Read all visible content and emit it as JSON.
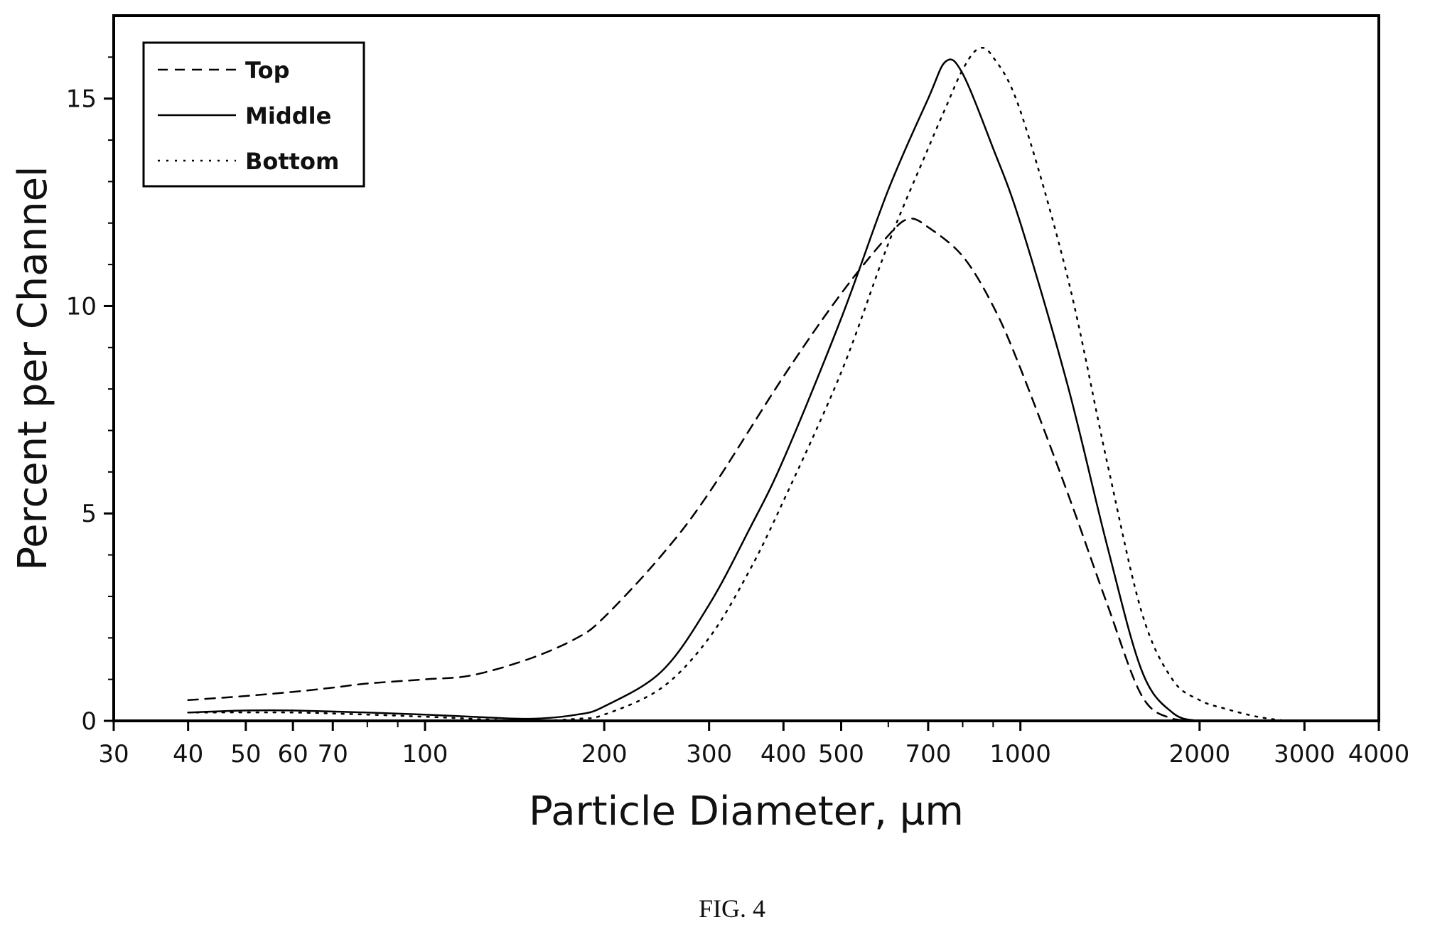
{
  "chart_data": {
    "type": "line",
    "title": "",
    "xlabel": "Particle Diameter, µm",
    "ylabel": "Percent per Channel",
    "xscale": "log",
    "xlim": [
      30,
      4000
    ],
    "ylim": [
      0,
      17
    ],
    "xticks": [
      30,
      40,
      50,
      60,
      70,
      100,
      200,
      300,
      400,
      500,
      700,
      1000,
      2000,
      3000,
      4000
    ],
    "xtick_labels": [
      "30",
      "40",
      "50",
      "60",
      "70",
      "100",
      "200",
      "300",
      "400",
      "500",
      "700",
      "1000",
      "2000",
      "3000",
      "4000"
    ],
    "xminor": [
      80,
      90,
      600,
      800,
      900
    ],
    "yticks": [
      0,
      5,
      10,
      15
    ],
    "ytick_labels": [
      "0",
      "5",
      "10",
      "15"
    ],
    "yminor": [
      1,
      2,
      3,
      4,
      6,
      7,
      8,
      9,
      11,
      12,
      13,
      14,
      16
    ],
    "grid": false,
    "legend_position": "top-left",
    "series": [
      {
        "name": "Top",
        "style": "dashed",
        "x": [
          40,
          50,
          60,
          70,
          80,
          100,
          120,
          150,
          180,
          200,
          250,
          300,
          400,
          500,
          600,
          650,
          700,
          800,
          900,
          1000,
          1200,
          1400,
          1600,
          1800,
          2000
        ],
        "y": [
          0.5,
          0.6,
          0.7,
          0.8,
          0.9,
          1.0,
          1.1,
          1.5,
          2.0,
          2.5,
          4.0,
          5.5,
          8.3,
          10.3,
          11.7,
          12.1,
          11.9,
          11.2,
          10.0,
          8.5,
          5.5,
          2.8,
          0.6,
          0.05,
          0.0
        ]
      },
      {
        "name": "Middle",
        "style": "solid",
        "x": [
          40,
          50,
          60,
          80,
          100,
          120,
          150,
          180,
          200,
          250,
          300,
          350,
          400,
          500,
          600,
          700,
          750,
          800,
          900,
          1000,
          1200,
          1400,
          1600,
          1800,
          2000,
          2200
        ],
        "y": [
          0.2,
          0.25,
          0.25,
          0.2,
          0.15,
          0.1,
          0.05,
          0.15,
          0.35,
          1.2,
          2.8,
          4.6,
          6.3,
          9.7,
          12.8,
          15.0,
          15.9,
          15.6,
          13.8,
          12.0,
          8.1,
          4.2,
          1.2,
          0.2,
          0.0,
          0.0
        ]
      },
      {
        "name": "Bottom",
        "style": "dotted",
        "x": [
          40,
          60,
          80,
          100,
          120,
          150,
          180,
          200,
          250,
          300,
          350,
          400,
          500,
          600,
          700,
          750,
          800,
          850,
          900,
          1000,
          1200,
          1400,
          1600,
          1800,
          2000,
          2200,
          2500,
          2800
        ],
        "y": [
          0.2,
          0.2,
          0.15,
          0.1,
          0.05,
          0.0,
          0.05,
          0.15,
          0.8,
          2.0,
          3.6,
          5.3,
          8.4,
          11.5,
          13.8,
          14.8,
          15.7,
          16.2,
          16.0,
          14.7,
          10.7,
          6.2,
          2.6,
          1.0,
          0.5,
          0.3,
          0.1,
          0.0
        ]
      }
    ]
  },
  "caption": "FIG. 4"
}
